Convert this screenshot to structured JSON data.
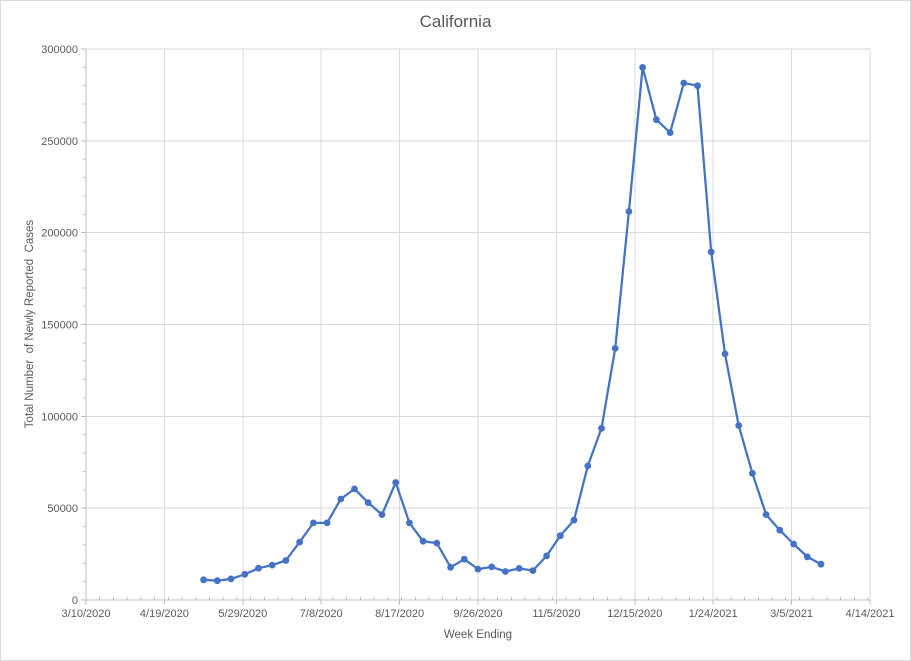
{
  "chart": {
    "title": "California",
    "x_axis_title": "Week Ending",
    "y_axis_title": "Total Number  of Newly Reported  Cases"
  },
  "chart_data": {
    "type": "line",
    "title": "California",
    "xlabel": "Week Ending",
    "ylabel": "Total Number of Newly Reported Cases",
    "legend": "none",
    "grid": true,
    "marker": "circle",
    "colors": {
      "series": "#4472C4",
      "gridline": "#d9d9d9",
      "axis_line": "#bfbfbf",
      "text": "#595959"
    },
    "xlim": [
      "3/10/2020",
      "4/14/2021"
    ],
    "ylim": [
      0,
      300000
    ],
    "y_major_unit": 50000,
    "y_minor_unit": 10000,
    "x_major_tick_labels": [
      "3/10/2020",
      "4/19/2020",
      "5/29/2020",
      "7/8/2020",
      "8/17/2020",
      "9/26/2020",
      "11/5/2020",
      "12/15/2020",
      "1/24/2021",
      "3/5/2021",
      "4/14/2021"
    ],
    "x_minor_unit_days": 7,
    "x": [
      "5/9/2020",
      "5/16/2020",
      "5/23/2020",
      "5/30/2020",
      "6/6/2020",
      "6/13/2020",
      "6/20/2020",
      "6/27/2020",
      "7/4/2020",
      "7/11/2020",
      "7/18/2020",
      "7/25/2020",
      "8/1/2020",
      "8/8/2020",
      "8/15/2020",
      "8/22/2020",
      "8/29/2020",
      "9/5/2020",
      "9/12/2020",
      "9/19/2020",
      "9/26/2020",
      "10/3/2020",
      "10/10/2020",
      "10/17/2020",
      "10/24/2020",
      "10/31/2020",
      "11/7/2020",
      "11/14/2020",
      "11/21/2020",
      "11/28/2020",
      "12/5/2020",
      "12/12/2020",
      "12/19/2020",
      "12/26/2020",
      "1/2/2021",
      "1/9/2021",
      "1/16/2021",
      "1/23/2021",
      "1/30/2021",
      "2/6/2021",
      "2/13/2021",
      "2/20/2021",
      "2/27/2021",
      "3/6/2021",
      "3/13/2021",
      "3/20/2021"
    ],
    "values": [
      11000,
      10500,
      11500,
      14000,
      17300,
      19000,
      21500,
      31500,
      42000,
      42000,
      55000,
      60500,
      53000,
      46500,
      64000,
      42000,
      32000,
      31000,
      17800,
      22200,
      16800,
      18000,
      15500,
      17200,
      16000,
      24000,
      35000,
      43500,
      73000,
      93500,
      137000,
      211500,
      290000,
      261500,
      254500,
      281500,
      280000,
      189500,
      134000,
      95000,
      69000,
      46500,
      38000,
      30500,
      23500,
      19500
    ]
  }
}
